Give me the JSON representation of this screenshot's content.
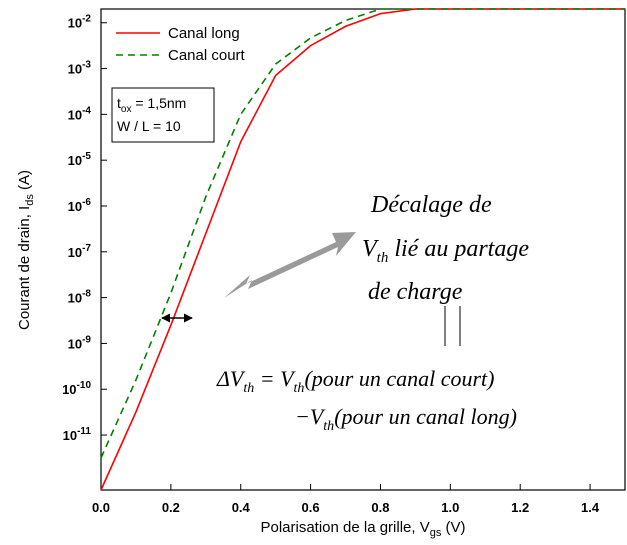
{
  "chart_data": {
    "type": "line",
    "xlabel_main": "Polarisation de la grille, V",
    "xlabel_sub": "gs",
    "xlabel_unit": " (V)",
    "ylabel_main": "Courant de drain, I",
    "ylabel_sub": "ds",
    "ylabel_unit": " (A)",
    "xlim": [
      0,
      1.5
    ],
    "ylim_log10": [
      -12.2,
      -1.7
    ],
    "x_ticks": [
      {
        "value": 0.0,
        "label": "0.0"
      },
      {
        "value": 0.2,
        "label": "0.2"
      },
      {
        "value": 0.4,
        "label": "0.4"
      },
      {
        "value": 0.6,
        "label": "0.6"
      },
      {
        "value": 0.8,
        "label": "0.8"
      },
      {
        "value": 1.0,
        "label": "1.0"
      },
      {
        "value": 1.2,
        "label": "1.2"
      },
      {
        "value": 1.4,
        "label": "1.4"
      }
    ],
    "y_ticks": [
      {
        "exp": -2,
        "base": "10",
        "sup": "-2"
      },
      {
        "exp": -3,
        "base": "10",
        "sup": "-3"
      },
      {
        "exp": -4,
        "base": "10",
        "sup": "-4"
      },
      {
        "exp": -5,
        "base": "10",
        "sup": "-5"
      },
      {
        "exp": -6,
        "base": "10",
        "sup": "-6"
      },
      {
        "exp": -7,
        "base": "10",
        "sup": "-7"
      },
      {
        "exp": -8,
        "base": "10",
        "sup": "-8"
      },
      {
        "exp": -9,
        "base": "10",
        "sup": "-9"
      },
      {
        "exp": -10,
        "base": "10",
        "sup": "-10"
      },
      {
        "exp": -11,
        "base": "10",
        "sup": "-11"
      }
    ],
    "series": [
      {
        "name": "Canal long",
        "color": "#ff0000",
        "dash": "solid",
        "points": [
          [
            0.0,
            -12.2
          ],
          [
            0.1,
            -10.5
          ],
          [
            0.2,
            -8.6
          ],
          [
            0.3,
            -6.6
          ],
          [
            0.4,
            -4.6
          ],
          [
            0.5,
            -3.15
          ],
          [
            0.6,
            -2.5
          ],
          [
            0.7,
            -2.08
          ],
          [
            0.8,
            -1.8
          ],
          [
            0.9,
            -1.6
          ],
          [
            1.0,
            -1.45
          ],
          [
            1.1,
            -1.33
          ],
          [
            1.2,
            -1.24
          ],
          [
            1.3,
            -1.16
          ],
          [
            1.4,
            -1.09
          ],
          [
            1.5,
            -1.05
          ]
        ]
      },
      {
        "name": "Canal court",
        "color": "#008000",
        "dash": "dashed",
        "points": [
          [
            0.0,
            -11.5
          ],
          [
            0.1,
            -9.8
          ],
          [
            0.2,
            -7.9
          ],
          [
            0.3,
            -5.8
          ],
          [
            0.4,
            -4.0
          ],
          [
            0.5,
            -2.9
          ],
          [
            0.6,
            -2.33
          ],
          [
            0.7,
            -1.95
          ],
          [
            0.8,
            -1.7
          ],
          [
            0.9,
            -1.52
          ],
          [
            1.0,
            -1.38
          ],
          [
            1.1,
            -1.28
          ],
          [
            1.2,
            -1.2
          ],
          [
            1.3,
            -1.13
          ],
          [
            1.4,
            -1.07
          ],
          [
            1.5,
            -1.03
          ]
        ]
      }
    ],
    "legend_placement": "top-left",
    "grid": false
  },
  "params": {
    "tox_base": "t",
    "tox_sub": "ox",
    "tox_value": " = 1,5nm",
    "wl": "W / L = 10"
  },
  "annotation": {
    "line1": "Décalage de",
    "line2_v": "V",
    "line2_sub": "th",
    "line2_rest": " lié au partage",
    "line3": "de charge"
  },
  "equation": {
    "delta": "ΔV",
    "sub": "th",
    "eq": " = V",
    "row1_rest": "(pour un canal court)",
    "minus": "−V",
    "row2_rest": "(pour un canal long)"
  }
}
